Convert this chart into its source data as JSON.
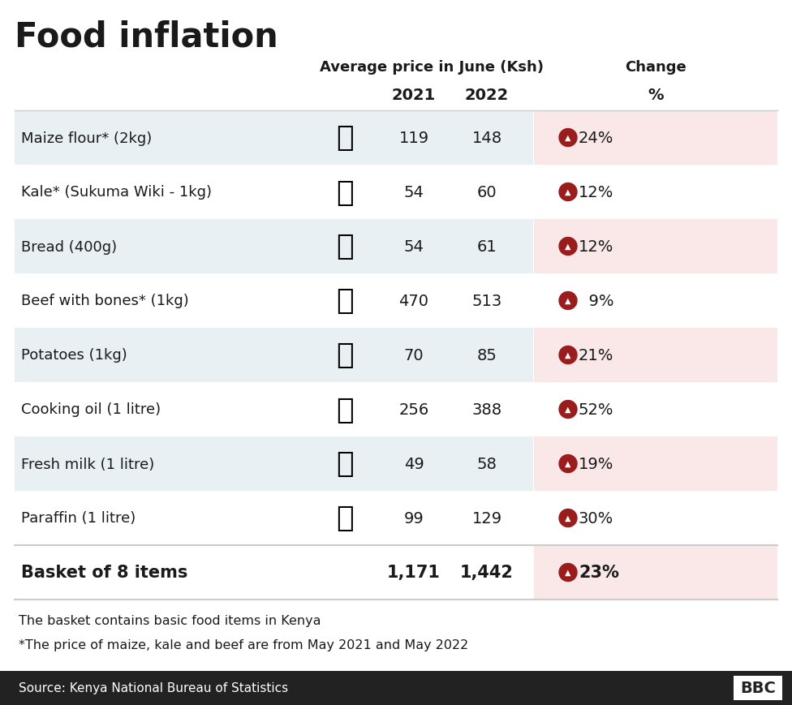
{
  "title": "Food inflation",
  "header_avg": "Average price in June (Ksh)",
  "header_2021": "2021",
  "header_2022": "2022",
  "header_change": "Change",
  "header_pct": "%",
  "rows": [
    {
      "label": "Maize flour* (2kg)",
      "v2021": "119",
      "v2022": "148",
      "change": "24%",
      "row_bg": true,
      "chg_bg": true
    },
    {
      "label": "Kale* (Sukuma Wiki - 1kg)",
      "v2021": "54",
      "v2022": "60",
      "change": "12%",
      "row_bg": false,
      "chg_bg": false
    },
    {
      "label": "Bread (400g)",
      "v2021": "54",
      "v2022": "61",
      "change": "12%",
      "row_bg": true,
      "chg_bg": true
    },
    {
      "label": "Beef with bones* (1kg)",
      "v2021": "470",
      "v2022": "513",
      "change": "9%",
      "row_bg": false,
      "chg_bg": false
    },
    {
      "label": "Potatoes (1kg)",
      "v2021": "70",
      "v2022": "85",
      "change": "21%",
      "row_bg": true,
      "chg_bg": true
    },
    {
      "label": "Cooking oil (1 litre)",
      "v2021": "256",
      "v2022": "388",
      "change": "52%",
      "row_bg": false,
      "chg_bg": false
    },
    {
      "label": "Fresh milk (1 litre)",
      "v2021": "49",
      "v2022": "58",
      "change": "19%",
      "row_bg": true,
      "chg_bg": true
    },
    {
      "label": "Paraffin (1 litre)",
      "v2021": "99",
      "v2022": "129",
      "change": "30%",
      "row_bg": false,
      "chg_bg": false
    }
  ],
  "basket_label": "Basket of 8 items",
  "basket_2021": "1,171",
  "basket_2022": "1,442",
  "basket_change": "23%",
  "footnote1": "The basket contains basic food items in Kenya",
  "footnote2": "*The price of maize, kale and beef are from May 2021 and May 2022",
  "source": "Source: Kenya National Bureau of Statistics",
  "bg_white": "#ffffff",
  "row_blue": "#e8f0f4",
  "chg_pink": "#fae8e8",
  "arrow_red": "#9b1c1c",
  "text_dark": "#1a1a1a",
  "sep_color": "#cccccc",
  "bottombar": "#222222"
}
